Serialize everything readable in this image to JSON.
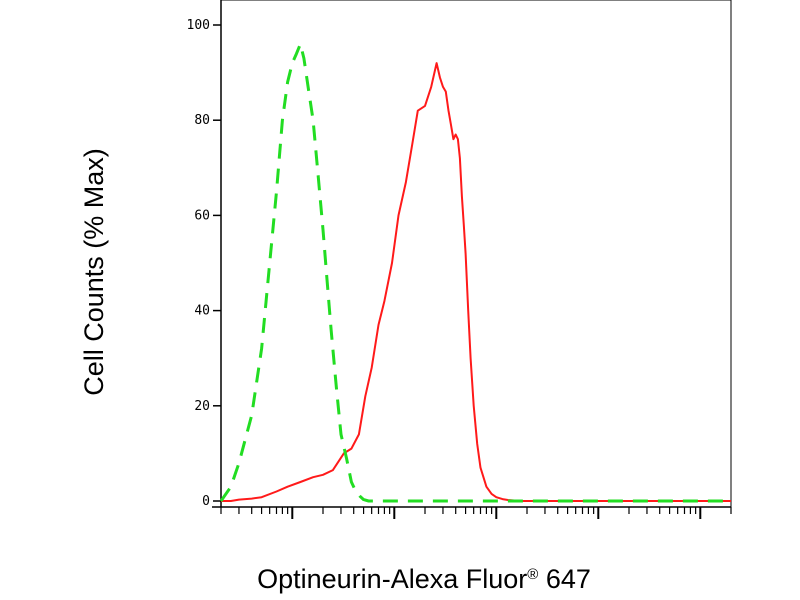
{
  "chart_data": {
    "type": "line",
    "title": "",
    "xlabel": "Optineurin-Alexa Fluor",
    "xlabel_mark": "®",
    "xlabel_suffix": " 647",
    "ylabel": "Cell Counts (% Max)",
    "xscale": "log",
    "xlim": [
      0.2,
      20000
    ],
    "ylim": [
      0,
      103
    ],
    "yticks": [
      0,
      20,
      40,
      60,
      80,
      100
    ],
    "grid": false,
    "legend": "none",
    "series": [
      {
        "color": "#ff1a1a",
        "style": "solid",
        "x": [
          0.2,
          0.25,
          0.3,
          0.4,
          0.5,
          0.7,
          0.9,
          1.2,
          1.6,
          2,
          2.5,
          3.2,
          3.8,
          4.5,
          5.2,
          6,
          7,
          8,
          9.5,
          11,
          13,
          15,
          17,
          20,
          23,
          26,
          28,
          30,
          32,
          34,
          36,
          38,
          40,
          42,
          44,
          46,
          48,
          50,
          53,
          56,
          60,
          65,
          70,
          80,
          90,
          100,
          115,
          130,
          150,
          180,
          220,
          300,
          500,
          1000,
          5000,
          20000
        ],
        "values": [
          0,
          0,
          0.3,
          0.5,
          0.8,
          2,
          3,
          4,
          5,
          5.5,
          6.5,
          10,
          11,
          14,
          22,
          28,
          37,
          42,
          50,
          60,
          67,
          75,
          82,
          83,
          87,
          92,
          89,
          87,
          86,
          82,
          79,
          76,
          77,
          76,
          72,
          64,
          58,
          52,
          40,
          30,
          20,
          12,
          7,
          3,
          1.5,
          0.8,
          0.4,
          0.2,
          0.1,
          0,
          0,
          0,
          0,
          0,
          0,
          0
        ]
      },
      {
        "color": "#22dd22",
        "style": "dashed",
        "x": [
          0.2,
          0.25,
          0.3,
          0.4,
          0.5,
          0.6,
          0.7,
          0.8,
          0.9,
          1.0,
          1.1,
          1.2,
          1.3,
          1.45,
          1.6,
          1.8,
          2.0,
          2.2,
          2.4,
          2.7,
          3.0,
          3.4,
          3.8,
          4.2,
          4.6,
          5.0,
          5.6,
          6.5,
          8,
          10,
          15,
          30,
          100,
          1000,
          20000
        ],
        "values": [
          0,
          3,
          8,
          18,
          32,
          50,
          65,
          80,
          88,
          92,
          94,
          96,
          93,
          86,
          80,
          68,
          57,
          46,
          36,
          24,
          14,
          9,
          4,
          2,
          1,
          0.3,
          0,
          0,
          0,
          0,
          0,
          0,
          0,
          0,
          0
        ]
      }
    ]
  }
}
